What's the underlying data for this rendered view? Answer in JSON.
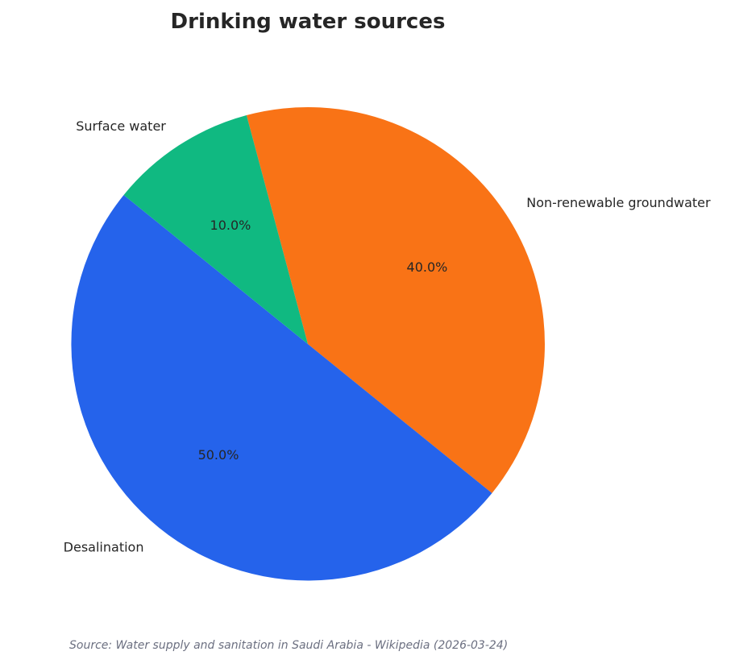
{
  "chart_data": {
    "type": "pie",
    "title": "Drinking water sources",
    "slices": [
      {
        "label": "Non-renewable groundwater",
        "value": 40.0,
        "pct_label": "40.0%",
        "color": "#f97316"
      },
      {
        "label": "Desalination",
        "value": 50.0,
        "pct_label": "50.0%",
        "color": "#2563eb"
      },
      {
        "label": "Surface water",
        "value": 10.0,
        "pct_label": "10.0%",
        "color": "#10b981"
      }
    ],
    "start_angle_deg": 105,
    "direction": "clockwise",
    "legend": "none"
  },
  "footer": {
    "source": "Source: Water supply and sanitation in Saudi Arabia - Wikipedia (2026-03-24)"
  }
}
